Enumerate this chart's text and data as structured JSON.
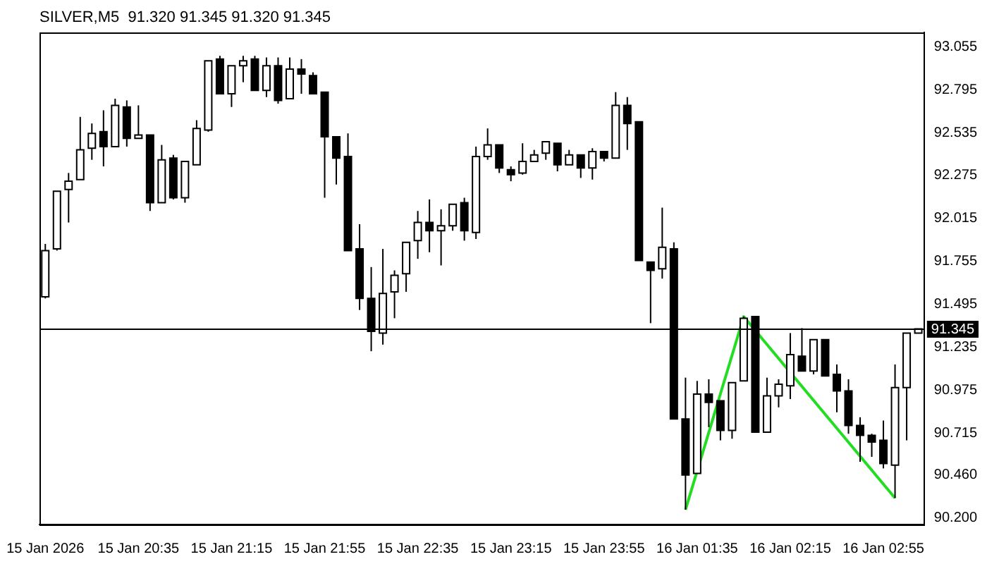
{
  "chart_data": {
    "type": "candlestick",
    "title": "SILVER,M5  91.320 91.345 91.320 91.345",
    "categories": [
      "15 Jan 2026",
      null,
      null,
      null,
      null,
      null,
      null,
      null,
      "15 Jan 20:35",
      null,
      null,
      null,
      null,
      null,
      null,
      null,
      "15 Jan 21:15",
      null,
      null,
      null,
      null,
      null,
      null,
      null,
      "15 Jan 21:55",
      null,
      null,
      null,
      null,
      null,
      null,
      null,
      "15 Jan 22:35",
      null,
      null,
      null,
      null,
      null,
      null,
      null,
      "15 Jan 23:15",
      null,
      null,
      null,
      null,
      null,
      null,
      null,
      "15 Jan 23:55",
      null,
      null,
      null,
      null,
      null,
      null,
      null,
      "16 Jan 01:35",
      null,
      null,
      null,
      null,
      null,
      null,
      null,
      "16 Jan 02:15",
      null,
      null,
      null,
      null,
      null,
      null,
      null,
      "16 Jan 02:55",
      null,
      null,
      null
    ],
    "ohlc": [
      [
        91.54,
        91.86,
        91.53,
        91.82
      ],
      [
        91.83,
        92.18,
        91.82,
        92.18
      ],
      [
        92.19,
        92.29,
        91.99,
        92.24
      ],
      [
        92.25,
        92.63,
        92.25,
        92.43
      ],
      [
        92.44,
        92.59,
        92.37,
        92.53
      ],
      [
        92.54,
        92.67,
        92.33,
        92.45
      ],
      [
        92.45,
        92.74,
        92.45,
        92.7
      ],
      [
        92.69,
        92.73,
        92.45,
        92.5
      ],
      [
        92.5,
        92.7,
        92.5,
        92.52
      ],
      [
        92.52,
        92.52,
        92.06,
        92.11
      ],
      [
        92.11,
        92.46,
        92.11,
        92.37
      ],
      [
        92.38,
        92.4,
        92.13,
        92.14
      ],
      [
        92.14,
        92.36,
        92.11,
        92.36
      ],
      [
        92.34,
        92.61,
        92.34,
        92.56
      ],
      [
        92.55,
        92.97,
        92.54,
        92.97
      ],
      [
        92.98,
        93.0,
        92.77,
        92.77
      ],
      [
        92.77,
        92.94,
        92.69,
        92.94
      ],
      [
        92.94,
        93.0,
        92.84,
        92.97
      ],
      [
        92.98,
        93.0,
        92.79,
        92.79
      ],
      [
        92.79,
        92.99,
        92.75,
        92.94
      ],
      [
        92.94,
        92.99,
        92.71,
        92.73
      ],
      [
        92.74,
        92.99,
        92.74,
        92.92
      ],
      [
        92.92,
        92.98,
        92.77,
        92.89
      ],
      [
        92.88,
        92.9,
        92.77,
        92.77
      ],
      [
        92.78,
        92.78,
        92.14,
        92.51
      ],
      [
        92.51,
        92.51,
        92.22,
        92.38
      ],
      [
        92.39,
        92.53,
        91.82,
        91.82
      ],
      [
        91.83,
        91.98,
        91.46,
        91.53
      ],
      [
        91.53,
        91.72,
        91.21,
        91.33
      ],
      [
        91.32,
        91.83,
        91.25,
        91.56
      ],
      [
        91.57,
        91.7,
        91.41,
        91.67
      ],
      [
        91.68,
        91.87,
        91.57,
        91.87
      ],
      [
        91.88,
        92.06,
        91.77,
        91.99
      ],
      [
        91.99,
        92.13,
        91.81,
        91.94
      ],
      [
        91.94,
        92.07,
        91.73,
        91.97
      ],
      [
        91.97,
        92.1,
        91.94,
        92.1
      ],
      [
        92.11,
        92.14,
        91.88,
        91.94
      ],
      [
        91.93,
        92.45,
        91.89,
        92.39
      ],
      [
        92.39,
        92.56,
        92.37,
        92.46
      ],
      [
        92.46,
        92.46,
        92.29,
        92.32
      ],
      [
        92.31,
        92.33,
        92.24,
        92.28
      ],
      [
        92.29,
        92.47,
        92.28,
        92.36
      ],
      [
        92.36,
        92.43,
        92.36,
        92.4
      ],
      [
        92.41,
        92.48,
        92.37,
        92.48
      ],
      [
        92.47,
        92.47,
        92.3,
        92.34
      ],
      [
        92.34,
        92.43,
        92.34,
        92.4
      ],
      [
        92.4,
        92.4,
        92.26,
        92.32
      ],
      [
        92.32,
        92.44,
        92.25,
        92.42
      ],
      [
        92.42,
        92.42,
        92.36,
        92.38
      ],
      [
        92.38,
        92.78,
        92.38,
        92.7
      ],
      [
        92.7,
        92.75,
        92.43,
        92.59
      ],
      [
        92.6,
        92.6,
        91.76,
        91.76
      ],
      [
        91.75,
        91.75,
        91.38,
        91.7
      ],
      [
        91.71,
        92.08,
        91.65,
        91.84
      ],
      [
        91.83,
        91.87,
        90.8,
        90.8
      ],
      [
        90.8,
        91.05,
        90.25,
        90.46
      ],
      [
        90.47,
        91.03,
        90.47,
        90.95
      ],
      [
        90.95,
        91.04,
        90.75,
        90.9
      ],
      [
        90.91,
        90.91,
        90.67,
        90.73
      ],
      [
        90.73,
        91.02,
        90.68,
        91.02
      ],
      [
        91.03,
        91.42,
        91.03,
        91.41
      ],
      [
        91.42,
        91.42,
        90.72,
        90.72
      ],
      [
        90.72,
        91.05,
        90.72,
        90.94
      ],
      [
        90.94,
        91.04,
        90.87,
        91.01
      ],
      [
        91.0,
        91.32,
        90.92,
        91.19
      ],
      [
        91.18,
        91.35,
        91.09,
        91.09
      ],
      [
        91.09,
        91.28,
        91.07,
        91.28
      ],
      [
        91.28,
        91.28,
        91.06,
        91.06
      ],
      [
        91.07,
        91.13,
        90.84,
        90.97
      ],
      [
        90.97,
        91.04,
        90.71,
        90.76
      ],
      [
        90.76,
        90.81,
        90.54,
        90.7
      ],
      [
        90.7,
        90.71,
        90.57,
        90.66
      ],
      [
        90.67,
        90.79,
        90.5,
        90.53
      ],
      [
        90.52,
        91.13,
        90.32,
        90.99
      ],
      [
        90.99,
        91.32,
        90.67,
        91.32
      ],
      [
        91.32,
        91.345,
        91.32,
        91.345
      ]
    ],
    "series": [
      {
        "type": "line",
        "color": "#22dd22",
        "values": [
          null,
          null,
          null,
          null,
          null,
          null,
          null,
          null,
          null,
          null,
          null,
          null,
          null,
          null,
          null,
          null,
          null,
          null,
          null,
          null,
          null,
          null,
          null,
          null,
          null,
          null,
          null,
          null,
          null,
          null,
          null,
          null,
          null,
          null,
          null,
          null,
          null,
          null,
          null,
          null,
          null,
          null,
          null,
          null,
          null,
          null,
          null,
          null,
          null,
          null,
          null,
          null,
          null,
          null,
          null,
          90.25,
          null,
          null,
          null,
          null,
          91.42,
          null,
          null,
          null,
          null,
          null,
          null,
          null,
          null,
          null,
          null,
          null,
          null,
          90.32,
          null,
          null
        ]
      }
    ],
    "ylim": [
      90.16,
      93.14
    ],
    "yticks": [
      93.055,
      92.795,
      92.535,
      92.275,
      92.015,
      91.755,
      91.495,
      91.235,
      90.975,
      90.715,
      {
        "value": 90.46,
        "label": "90.460"
      },
      {
        "value": 90.2,
        "label": "90.200"
      }
    ],
    "ref_lines": [
      {
        "axis": "y",
        "value": 91.345,
        "label": "91.345",
        "color": "#000000"
      }
    ]
  }
}
